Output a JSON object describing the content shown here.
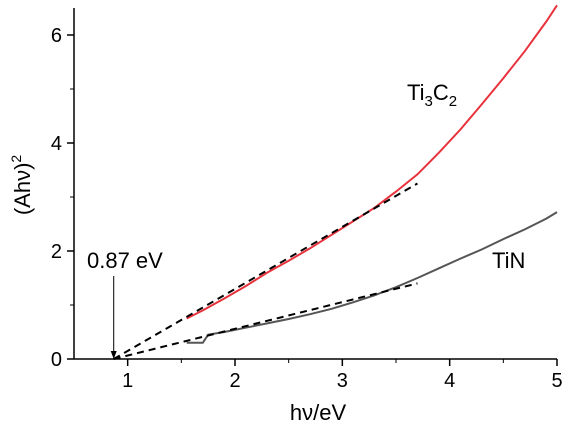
{
  "chart_data": {
    "type": "line",
    "title": "",
    "xlabel": "hν/eV",
    "ylabel_main": "(Ahν)",
    "ylabel_sup": "2",
    "xlim": [
      0.5,
      5.0
    ],
    "ylim": [
      0,
      6.5
    ],
    "x_ticks": [
      1,
      2,
      3,
      4,
      5
    ],
    "y_ticks": [
      0,
      2,
      4,
      6
    ],
    "grid": false,
    "series": [
      {
        "name_main": "Ti",
        "name_sub1": "3",
        "name_mid": "C",
        "name_sub2": "2",
        "color": "#e8323c",
        "x": [
          1.55,
          1.7,
          1.9,
          2.1,
          2.3,
          2.5,
          2.7,
          2.9,
          3.1,
          3.3,
          3.5,
          3.7,
          3.9,
          4.1,
          4.3,
          4.5,
          4.7,
          4.9,
          5.0
        ],
        "y": [
          0.75,
          0.9,
          1.12,
          1.35,
          1.6,
          1.82,
          2.05,
          2.3,
          2.55,
          2.8,
          3.1,
          3.42,
          3.82,
          4.25,
          4.72,
          5.2,
          5.7,
          6.25,
          6.55
        ]
      },
      {
        "name": "TiN",
        "color": "#555555",
        "x": [
          1.55,
          1.7,
          1.75,
          1.9,
          2.1,
          2.3,
          2.5,
          2.7,
          2.9,
          3.1,
          3.3,
          3.5,
          3.7,
          3.9,
          4.1,
          4.3,
          4.5,
          4.7,
          4.9,
          5.0
        ],
        "y": [
          0.3,
          0.3,
          0.45,
          0.5,
          0.58,
          0.66,
          0.74,
          0.83,
          0.93,
          1.05,
          1.18,
          1.33,
          1.5,
          1.68,
          1.86,
          2.03,
          2.22,
          2.4,
          2.6,
          2.72
        ]
      }
    ],
    "fit_lines": [
      {
        "x": [
          0.87,
          3.7
        ],
        "y": [
          0,
          3.25
        ]
      },
      {
        "x": [
          0.87,
          3.7
        ],
        "y": [
          0,
          1.4
        ]
      }
    ],
    "annotations": {
      "bandgap_label": "0.87 eV",
      "bandgap_x": 0.87
    }
  }
}
